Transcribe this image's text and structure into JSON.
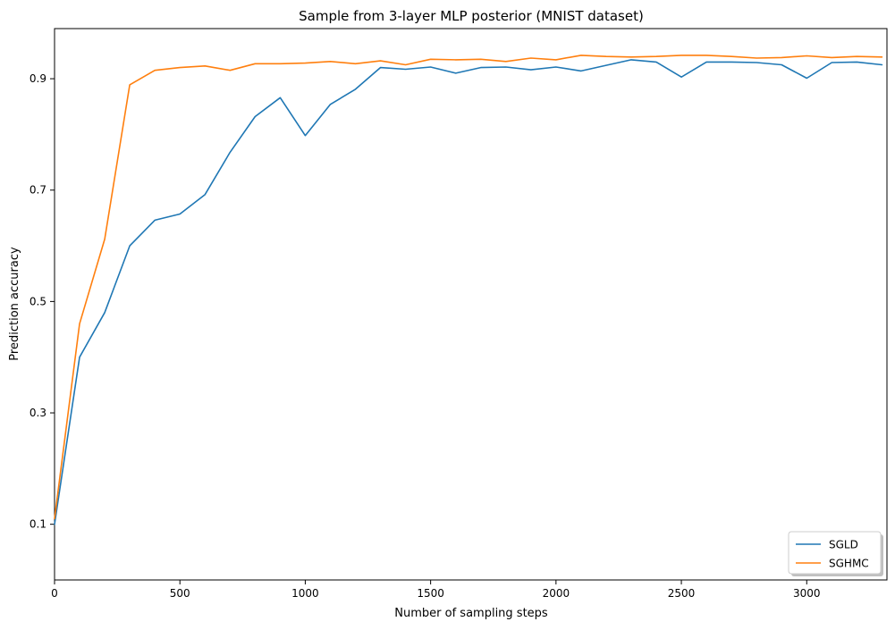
{
  "chart_data": {
    "type": "line",
    "title": "Sample from 3-layer MLP posterior (MNIST dataset)",
    "xlabel": "Number of sampling steps",
    "ylabel": "Prediction accuracy",
    "xlim": [
      0,
      3320
    ],
    "ylim": [
      0.0,
      0.99
    ],
    "xticks": [
      0,
      500,
      1000,
      1500,
      2000,
      2500,
      3000
    ],
    "yticks": [
      0.1,
      0.3,
      0.5,
      0.7,
      0.9
    ],
    "grid": false,
    "legend_position": "bottom-right",
    "x": [
      0,
      100,
      200,
      300,
      400,
      500,
      600,
      700,
      800,
      900,
      1000,
      1100,
      1200,
      1300,
      1400,
      1500,
      1600,
      1700,
      1800,
      1900,
      2000,
      2100,
      2200,
      2300,
      2400,
      2500,
      2600,
      2700,
      2800,
      2900,
      3000,
      3100,
      3200,
      3300
    ],
    "series": [
      {
        "name": "SGLD",
        "color": "#1f77b4",
        "values": [
          0.1,
          0.4,
          0.48,
          0.6,
          0.646,
          0.657,
          0.692,
          0.768,
          0.832,
          0.866,
          0.798,
          0.854,
          0.881,
          0.92,
          0.917,
          0.921,
          0.91,
          0.92,
          0.921,
          0.916,
          0.921,
          0.914,
          0.924,
          0.934,
          0.93,
          0.903,
          0.93,
          0.93,
          0.929,
          0.925,
          0.901,
          0.929,
          0.93,
          0.925
        ]
      },
      {
        "name": "SGHMC",
        "color": "#ff7f0e",
        "values": [
          0.11,
          0.46,
          0.612,
          0.889,
          0.915,
          0.92,
          0.923,
          0.915,
          0.927,
          0.927,
          0.928,
          0.931,
          0.927,
          0.932,
          0.925,
          0.935,
          0.934,
          0.935,
          0.931,
          0.937,
          0.934,
          0.942,
          0.94,
          0.939,
          0.94,
          0.942,
          0.942,
          0.94,
          0.937,
          0.938,
          0.941,
          0.938,
          0.94,
          0.939
        ]
      }
    ]
  }
}
